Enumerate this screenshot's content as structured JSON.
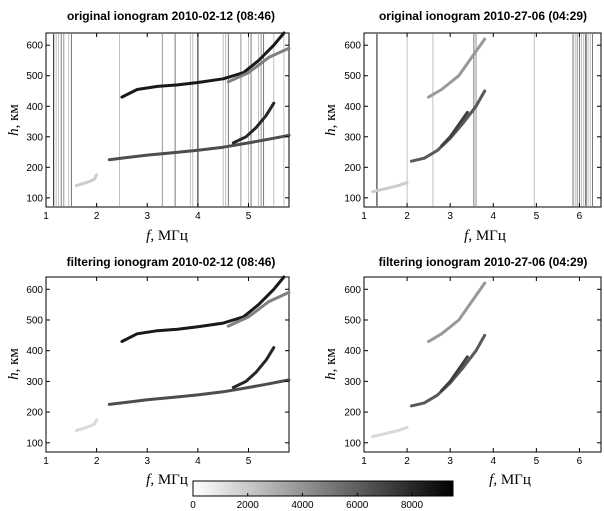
{
  "chart_data": [
    {
      "type": "heatmap",
      "title": "original ionogram 2010-02-12 (08:46)",
      "xlabel_var": "f",
      "xlabel_unit": ", МГц",
      "ylabel_var": "h",
      "ylabel_unit": ", км",
      "xlim": [
        1,
        5.8
      ],
      "ylim": [
        70,
        640
      ],
      "xticks": [
        1,
        2,
        3,
        4,
        5
      ],
      "yticks": [
        100,
        200,
        300,
        400,
        500,
        600
      ],
      "noise_lines": [
        1.15,
        1.2,
        1.25,
        1.3,
        1.35,
        1.45,
        1.5,
        2.45,
        3.3,
        3.55,
        3.85,
        3.9,
        4.0,
        4.5,
        4.55,
        4.6,
        4.85,
        5.0,
        5.05,
        5.2,
        5.25,
        5.3,
        5.5,
        5.7
      ],
      "traces": [
        {
          "points": [
            [
              1.6,
              140
            ],
            [
              1.8,
              150
            ],
            [
              1.95,
              160
            ],
            [
              2.0,
              175
            ]
          ],
          "intensity": 0.2
        },
        {
          "points": [
            [
              2.25,
              225
            ],
            [
              2.6,
              232
            ],
            [
              3.0,
              240
            ],
            [
              3.5,
              248
            ],
            [
              4.0,
              256
            ],
            [
              4.5,
              266
            ],
            [
              5.0,
              280
            ],
            [
              5.4,
              292
            ],
            [
              5.8,
              305
            ]
          ],
          "intensity": 0.7
        },
        {
          "points": [
            [
              4.7,
              280
            ],
            [
              4.95,
              300
            ],
            [
              5.15,
              330
            ],
            [
              5.35,
              370
            ],
            [
              5.5,
              410
            ]
          ],
          "intensity": 0.85
        },
        {
          "points": [
            [
              2.5,
              430
            ],
            [
              2.8,
              455
            ],
            [
              3.2,
              465
            ],
            [
              3.6,
              470
            ],
            [
              4.0,
              478
            ],
            [
              4.5,
              490
            ],
            [
              4.9,
              510
            ],
            [
              5.2,
              550
            ],
            [
              5.5,
              600
            ],
            [
              5.7,
              640
            ]
          ],
          "intensity": 0.9
        },
        {
          "points": [
            [
              4.6,
              480
            ],
            [
              5.0,
              510
            ],
            [
              5.4,
              560
            ],
            [
              5.8,
              590
            ]
          ],
          "intensity": 0.5
        }
      ]
    },
    {
      "type": "heatmap",
      "title": "original ionogram 2010-27-06 (04:29)",
      "xlabel_var": "f",
      "xlabel_unit": ", МГц",
      "ylabel_var": "h",
      "ylabel_unit": ", км",
      "xlim": [
        1,
        6.5
      ],
      "ylim": [
        70,
        640
      ],
      "xticks": [
        1,
        2,
        3,
        4,
        5,
        6
      ],
      "yticks": [
        100,
        200,
        300,
        400,
        500,
        600
      ],
      "noise_lines": [
        1.3,
        2.0,
        2.6,
        3.55,
        3.6,
        4.95,
        5.85,
        5.9,
        5.95,
        6.0,
        6.05,
        6.1,
        6.15,
        6.2,
        6.25,
        6.3
      ],
      "traces": [
        {
          "points": [
            [
              1.2,
              120
            ],
            [
              1.5,
              130
            ],
            [
              1.8,
              140
            ],
            [
              2.0,
              150
            ]
          ],
          "intensity": 0.2
        },
        {
          "points": [
            [
              2.1,
              220
            ],
            [
              2.4,
              230
            ],
            [
              2.7,
              255
            ],
            [
              3.0,
              295
            ],
            [
              3.3,
              345
            ],
            [
              3.6,
              400
            ],
            [
              3.8,
              450
            ]
          ],
          "intensity": 0.65
        },
        {
          "points": [
            [
              2.8,
              270
            ],
            [
              3.0,
              300
            ],
            [
              3.2,
              340
            ],
            [
              3.4,
              380
            ]
          ],
          "intensity": 0.75
        },
        {
          "points": [
            [
              2.5,
              430
            ],
            [
              2.8,
              455
            ],
            [
              3.2,
              500
            ],
            [
              3.5,
              560
            ],
            [
              3.8,
              620
            ]
          ],
          "intensity": 0.4
        }
      ]
    },
    {
      "type": "heatmap",
      "title": "filtering ionogram  2010-02-12 (08:46)",
      "xlabel_var": "f",
      "xlabel_unit": ", МГц",
      "ylabel_var": "h",
      "ylabel_unit": ", км",
      "xlim": [
        1,
        5.8
      ],
      "ylim": [
        70,
        640
      ],
      "xticks": [
        1,
        2,
        3,
        4,
        5
      ],
      "yticks": [
        100,
        200,
        300,
        400,
        500,
        600
      ],
      "noise_lines": [],
      "traces": [
        {
          "points": [
            [
              1.6,
              140
            ],
            [
              1.8,
              150
            ],
            [
              1.95,
              160
            ],
            [
              2.0,
              175
            ]
          ],
          "intensity": 0.15
        },
        {
          "points": [
            [
              2.25,
              225
            ],
            [
              2.6,
              232
            ],
            [
              3.0,
              240
            ],
            [
              3.5,
              248
            ],
            [
              4.0,
              256
            ],
            [
              4.5,
              266
            ],
            [
              5.0,
              280
            ],
            [
              5.4,
              292
            ],
            [
              5.8,
              305
            ]
          ],
          "intensity": 0.7
        },
        {
          "points": [
            [
              4.7,
              280
            ],
            [
              4.95,
              300
            ],
            [
              5.15,
              330
            ],
            [
              5.35,
              370
            ],
            [
              5.5,
              410
            ]
          ],
          "intensity": 0.85
        },
        {
          "points": [
            [
              2.5,
              430
            ],
            [
              2.8,
              455
            ],
            [
              3.2,
              465
            ],
            [
              3.6,
              470
            ],
            [
              4.0,
              478
            ],
            [
              4.5,
              490
            ],
            [
              4.9,
              510
            ],
            [
              5.2,
              550
            ],
            [
              5.5,
              600
            ],
            [
              5.7,
              640
            ]
          ],
          "intensity": 0.9
        },
        {
          "points": [
            [
              4.6,
              480
            ],
            [
              5.0,
              510
            ],
            [
              5.4,
              560
            ],
            [
              5.8,
              590
            ]
          ],
          "intensity": 0.5
        }
      ]
    },
    {
      "type": "heatmap",
      "title": "filtering ionogram  2010-27-06 (04:29)",
      "xlabel_var": "f",
      "xlabel_unit": ", МГц",
      "ylabel_var": "h",
      "ylabel_unit": ", км",
      "xlim": [
        1,
        6.5
      ],
      "ylim": [
        70,
        640
      ],
      "xticks": [
        1,
        2,
        3,
        4,
        5,
        6
      ],
      "yticks": [
        100,
        200,
        300,
        400,
        500,
        600
      ],
      "noise_lines": [],
      "traces": [
        {
          "points": [
            [
              1.2,
              120
            ],
            [
              1.5,
              130
            ],
            [
              1.8,
              140
            ],
            [
              2.0,
              150
            ]
          ],
          "intensity": 0.15
        },
        {
          "points": [
            [
              2.1,
              220
            ],
            [
              2.4,
              230
            ],
            [
              2.7,
              255
            ],
            [
              3.0,
              295
            ],
            [
              3.3,
              345
            ],
            [
              3.6,
              400
            ],
            [
              3.8,
              450
            ]
          ],
          "intensity": 0.65
        },
        {
          "points": [
            [
              2.8,
              270
            ],
            [
              3.0,
              300
            ],
            [
              3.2,
              340
            ],
            [
              3.4,
              380
            ]
          ],
          "intensity": 0.75
        },
        {
          "points": [
            [
              2.5,
              430
            ],
            [
              2.8,
              455
            ],
            [
              3.2,
              500
            ],
            [
              3.5,
              560
            ],
            [
              3.8,
              620
            ]
          ],
          "intensity": 0.4
        }
      ]
    }
  ],
  "colorbar": {
    "range": [
      0,
      9500
    ],
    "ticks": [
      0,
      2000,
      4000,
      6000,
      8000
    ]
  }
}
